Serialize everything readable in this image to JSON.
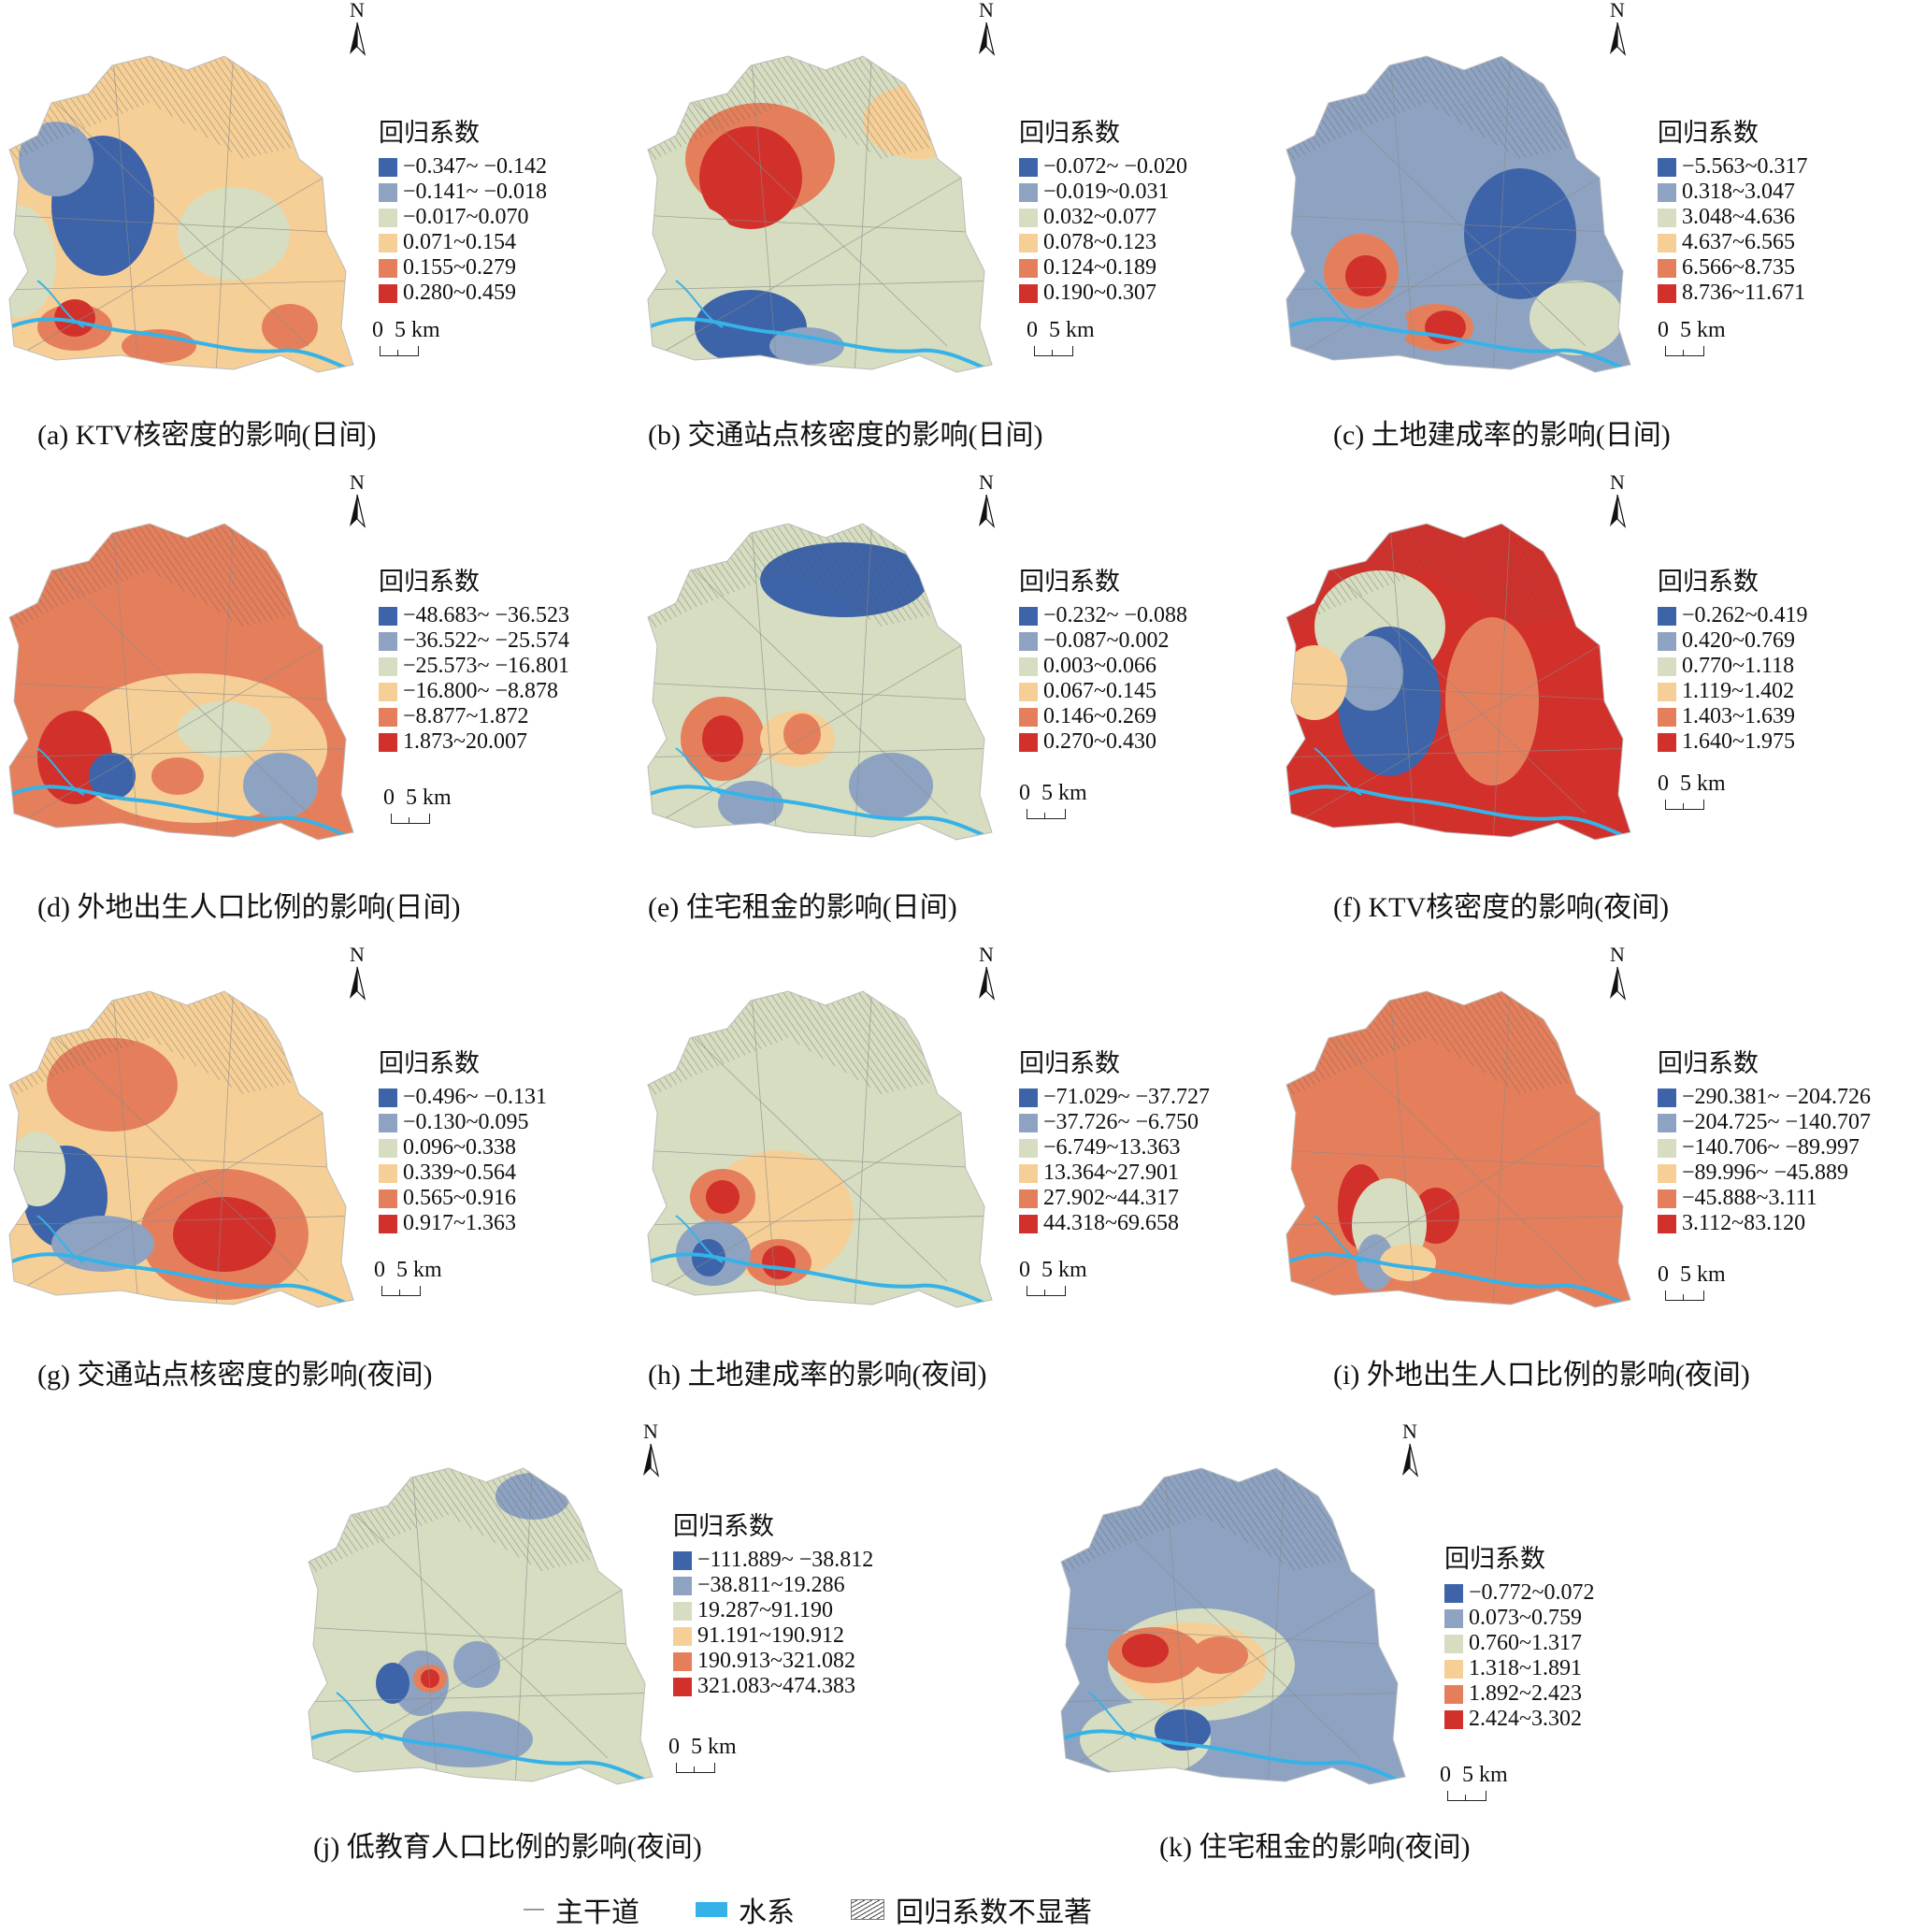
{
  "legend_title": "回归系数",
  "north_label": "N",
  "scale_label": "0  5 km",
  "panels": [
    {
      "id": "a",
      "caption": "(a) KTV核密度的影响(日间)",
      "ranges": [
        "−0.347~ −0.142",
        "−0.141~ −0.018",
        "−0.017~0.070",
        "0.071~0.154",
        "0.155~0.279",
        "0.280~0.459"
      ]
    },
    {
      "id": "b",
      "caption": "(b) 交通站点核密度的影响(日间)",
      "ranges": [
        "−0.072~ −0.020",
        "−0.019~0.031",
        "0.032~0.077",
        "0.078~0.123",
        "0.124~0.189",
        "0.190~0.307"
      ]
    },
    {
      "id": "c",
      "caption": "(c) 土地建成率的影响(日间)",
      "ranges": [
        "−5.563~0.317",
        "0.318~3.047",
        "3.048~4.636",
        "4.637~6.565",
        "6.566~8.735",
        "8.736~11.671"
      ]
    },
    {
      "id": "d",
      "caption": "(d) 外地出生人口比例的影响(日间)",
      "ranges": [
        "−48.683~ −36.523",
        "−36.522~ −25.574",
        "−25.573~ −16.801",
        "−16.800~ −8.878",
        "−8.877~1.872",
        "1.873~20.007"
      ]
    },
    {
      "id": "e",
      "caption": "(e) 住宅租金的影响(日间)",
      "ranges": [
        "−0.232~ −0.088",
        "−0.087~0.002",
        "0.003~0.066",
        "0.067~0.145",
        "0.146~0.269",
        "0.270~0.430"
      ]
    },
    {
      "id": "f",
      "caption": "(f) KTV核密度的影响(夜间)",
      "ranges": [
        "−0.262~0.419",
        "0.420~0.769",
        "0.770~1.118",
        "1.119~1.402",
        "1.403~1.639",
        "1.640~1.975"
      ]
    },
    {
      "id": "g",
      "caption": "(g) 交通站点核密度的影响(夜间)",
      "ranges": [
        "−0.496~ −0.131",
        "−0.130~0.095",
        "0.096~0.338",
        "0.339~0.564",
        "0.565~0.916",
        "0.917~1.363"
      ]
    },
    {
      "id": "h",
      "caption": "(h) 土地建成率的影响(夜间)",
      "ranges": [
        "−71.029~ −37.727",
        "−37.726~ −6.750",
        "−6.749~13.363",
        "13.364~27.901",
        "27.902~44.317",
        "44.318~69.658"
      ]
    },
    {
      "id": "i",
      "caption": "(i) 外地出生人口比例的影响(夜间)",
      "ranges": [
        "−290.381~ −204.726",
        "−204.725~ −140.707",
        "−140.706~ −89.997",
        "−89.996~ −45.889",
        "−45.888~3.111",
        "3.112~83.120"
      ]
    },
    {
      "id": "j",
      "caption": "(j) 低教育人口比例的影响(夜间)",
      "ranges": [
        "−111.889~ −38.812",
        "−38.811~19.286",
        "19.287~91.190",
        "91.191~190.912",
        "190.913~321.082",
        "321.083~474.383"
      ]
    },
    {
      "id": "k",
      "caption": "(k) 住宅租金的影响(夜间)",
      "ranges": [
        "−0.772~0.072",
        "0.073~0.759",
        "0.760~1.317",
        "1.318~1.891",
        "1.892~2.423",
        "2.424~3.302"
      ]
    }
  ],
  "bottom_legend": {
    "road": "主干道",
    "water": "水系",
    "insignificant": "回归系数不显著"
  },
  "colors": {
    "c1": "#3d63a8",
    "c2": "#8ea3c2",
    "c3": "#d6ddc0",
    "c4": "#f6cf96",
    "c5": "#e57f5b",
    "c6": "#d2302b",
    "water": "#35b3e8",
    "road": "#9a9a9a"
  }
}
